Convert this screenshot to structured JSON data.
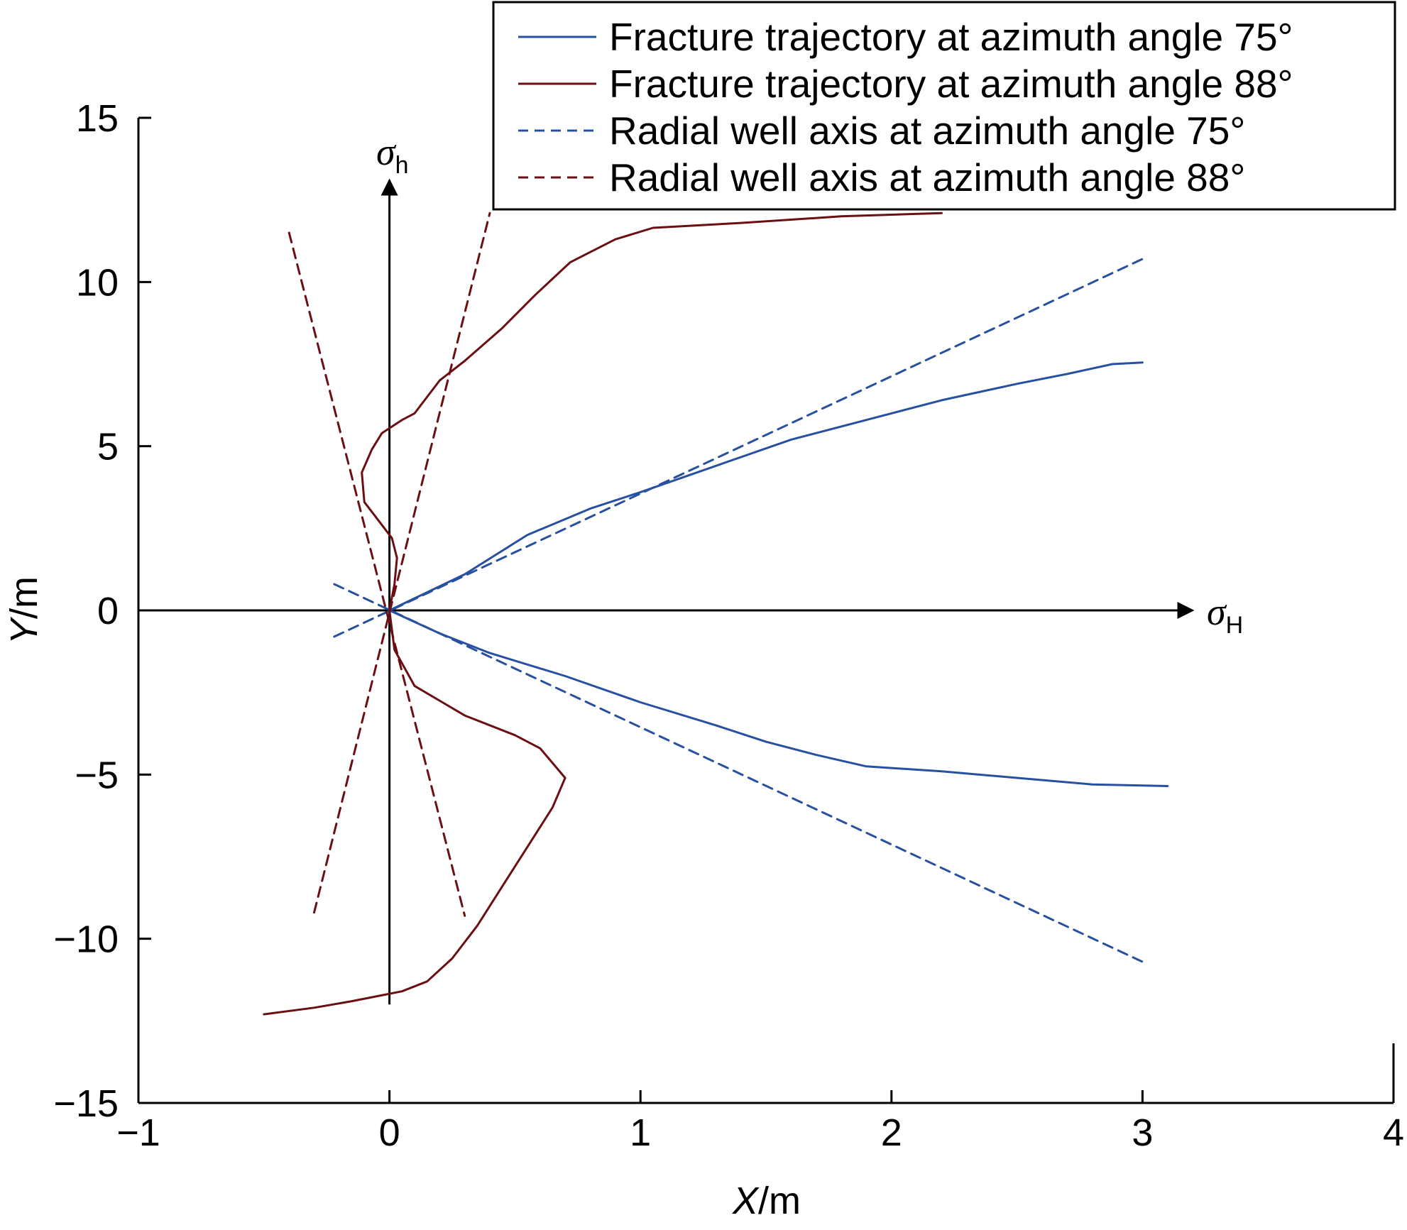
{
  "chart_data": {
    "type": "line",
    "title": "",
    "xlabel": {
      "var": "X",
      "unit": "/m"
    },
    "ylabel": {
      "var": "Y",
      "unit": "/m"
    },
    "xlim": [
      -1,
      4
    ],
    "ylim": [
      -15,
      15
    ],
    "xticks": [
      -1,
      0,
      1,
      2,
      3,
      4
    ],
    "yticks": [
      -15,
      -10,
      -5,
      0,
      5,
      10,
      15
    ],
    "xtick_labels": [
      "−1",
      "0",
      "1",
      "2",
      "3",
      "4"
    ],
    "ytick_labels": [
      "−15",
      "−10",
      "−5",
      "0",
      "5",
      "10",
      "15"
    ],
    "grid": false,
    "legend_position": "top-right",
    "stress_axes": {
      "horizontal": {
        "symbol": "σ",
        "subscript": "H"
      },
      "vertical": {
        "symbol": "σ",
        "subscript": "h"
      }
    },
    "series": [
      {
        "name": "Fracture trajectory at azimuth angle 75°",
        "color": "#2850a0",
        "dash": "solid",
        "segments": [
          [
            [
              0,
              0
            ],
            [
              0.3,
              1.1
            ],
            [
              0.55,
              2.3
            ],
            [
              0.8,
              3.1
            ],
            [
              1.0,
              3.6
            ],
            [
              1.3,
              4.4
            ],
            [
              1.6,
              5.2
            ],
            [
              1.9,
              5.8
            ],
            [
              2.2,
              6.4
            ],
            [
              2.5,
              6.9
            ],
            [
              2.7,
              7.2
            ],
            [
              2.88,
              7.5
            ],
            [
              3.0,
              7.55
            ]
          ],
          [
            [
              0,
              0
            ],
            [
              0.2,
              -0.7
            ],
            [
              0.4,
              -1.3
            ],
            [
              0.7,
              -2.0
            ],
            [
              1.0,
              -2.8
            ],
            [
              1.3,
              -3.5
            ],
            [
              1.5,
              -4.0
            ],
            [
              1.7,
              -4.4
            ],
            [
              1.9,
              -4.75
            ],
            [
              2.2,
              -4.9
            ],
            [
              2.5,
              -5.1
            ],
            [
              2.8,
              -5.3
            ],
            [
              3.1,
              -5.35
            ]
          ]
        ]
      },
      {
        "name": "Fracture trajectory at azimuth angle 88°",
        "color": "#6b0f12",
        "dash": "solid",
        "segments": [
          [
            [
              0,
              0
            ],
            [
              0.02,
              0.8
            ],
            [
              0.03,
              1.6
            ],
            [
              0.01,
              2.2
            ],
            [
              -0.06,
              2.9
            ],
            [
              -0.1,
              3.3
            ],
            [
              -0.11,
              4.2
            ],
            [
              -0.07,
              4.9
            ],
            [
              -0.03,
              5.4
            ],
            [
              0.05,
              5.8
            ],
            [
              0.1,
              6.0
            ],
            [
              0.2,
              7.0
            ],
            [
              0.3,
              7.6
            ],
            [
              0.45,
              8.6
            ],
            [
              0.58,
              9.6
            ],
            [
              0.72,
              10.6
            ],
            [
              0.9,
              11.3
            ],
            [
              1.05,
              11.65
            ],
            [
              1.4,
              11.8
            ],
            [
              1.8,
              12.0
            ],
            [
              2.2,
              12.1
            ]
          ],
          [
            [
              0,
              0
            ],
            [
              0.02,
              -1.2
            ],
            [
              0.1,
              -2.3
            ],
            [
              0.3,
              -3.2
            ],
            [
              0.5,
              -3.8
            ],
            [
              0.6,
              -4.2
            ],
            [
              0.7,
              -5.1
            ],
            [
              0.65,
              -6.0
            ],
            [
              0.55,
              -7.2
            ],
            [
              0.45,
              -8.4
            ],
            [
              0.35,
              -9.6
            ],
            [
              0.25,
              -10.6
            ],
            [
              0.15,
              -11.3
            ],
            [
              0.05,
              -11.6
            ],
            [
              -0.15,
              -11.9
            ],
            [
              -0.3,
              -12.1
            ],
            [
              -0.5,
              -12.3
            ]
          ]
        ]
      },
      {
        "name": "Radial well axis at azimuth angle 75°",
        "color": "#2850a0",
        "dash": "dashed",
        "segments": [
          [
            [
              -0.22,
              -0.8
            ],
            [
              3.0,
              10.7
            ]
          ],
          [
            [
              -0.22,
              0.8
            ],
            [
              3.0,
              -10.7
            ]
          ]
        ]
      },
      {
        "name": "Radial well axis at azimuth angle 88°",
        "color": "#6b0f12",
        "dash": "dashed",
        "segments": [
          [
            [
              -0.3,
              -9.2
            ],
            [
              0.4,
              12.1
            ]
          ],
          [
            [
              -0.4,
              11.5
            ],
            [
              0.3,
              -9.3
            ]
          ]
        ]
      }
    ]
  }
}
